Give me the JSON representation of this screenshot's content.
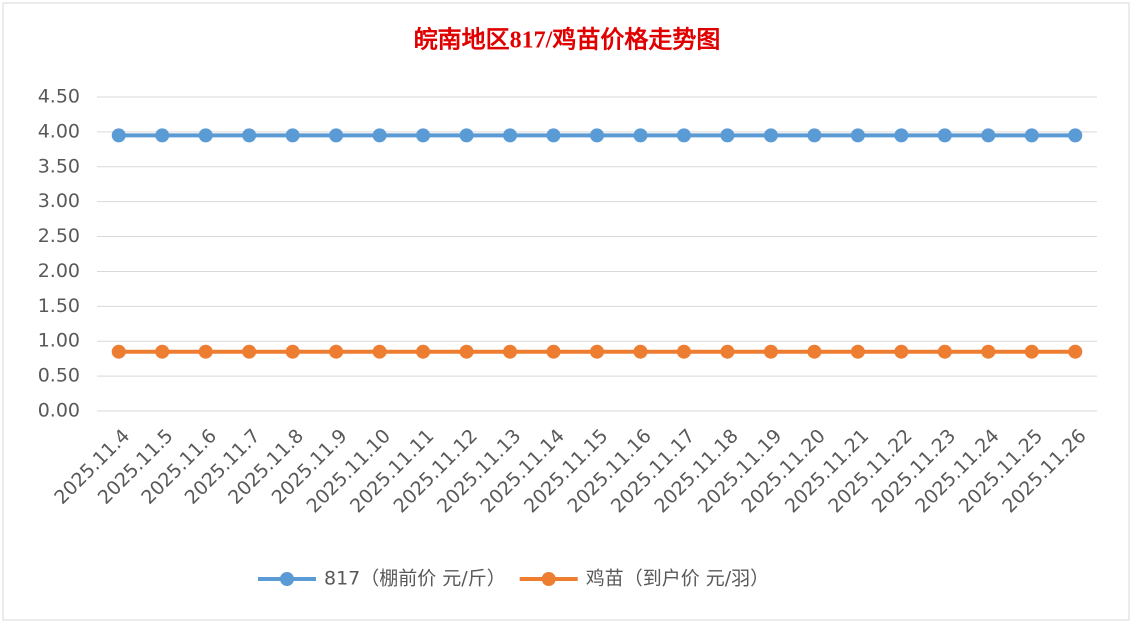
{
  "chart_data": {
    "type": "line",
    "title": "皖南地区817/鸡苗价格走势图",
    "categories": [
      "2025.11.4",
      "2025.11.5",
      "2025.11.6",
      "2025.11.7",
      "2025.11.8",
      "2025.11.9",
      "2025.11.10",
      "2025.11.11",
      "2025.11.12",
      "2025.11.13",
      "2025.11.14",
      "2025.11.15",
      "2025.11.16",
      "2025.11.17",
      "2025.11.18",
      "2025.11.19",
      "2025.11.20",
      "2025.11.21",
      "2025.11.22",
      "2025.11.23",
      "2025.11.24",
      "2025.11.25",
      "2025.11.26"
    ],
    "series": [
      {
        "name": "817（棚前价 元/斤）",
        "color": "#5b9bd5",
        "values": [
          3.95,
          3.95,
          3.95,
          3.95,
          3.95,
          3.95,
          3.95,
          3.95,
          3.95,
          3.95,
          3.95,
          3.95,
          3.95,
          3.95,
          3.95,
          3.95,
          3.95,
          3.95,
          3.95,
          3.95,
          3.95,
          3.95,
          3.95
        ]
      },
      {
        "name": "鸡苗（到户价 元/羽）",
        "color": "#ed7d31",
        "values": [
          0.85,
          0.85,
          0.85,
          0.85,
          0.85,
          0.85,
          0.85,
          0.85,
          0.85,
          0.85,
          0.85,
          0.85,
          0.85,
          0.85,
          0.85,
          0.85,
          0.85,
          0.85,
          0.85,
          0.85,
          0.85,
          0.85,
          0.85
        ]
      }
    ],
    "ylim": [
      0,
      4.5
    ],
    "yticks": [
      {
        "value": 0,
        "label": "0.00"
      },
      {
        "value": 0.5,
        "label": "0.50"
      },
      {
        "value": 1,
        "label": "1.00"
      },
      {
        "value": 1.5,
        "label": "1.50"
      },
      {
        "value": 2,
        "label": "2.00"
      },
      {
        "value": 2.5,
        "label": "2.50"
      },
      {
        "value": 3,
        "label": "3.00"
      },
      {
        "value": 3.5,
        "label": "3.50"
      },
      {
        "value": 4,
        "label": "4.00"
      },
      {
        "value": 4.5,
        "label": "4.50"
      }
    ],
    "grid": true,
    "legend": "bottom"
  }
}
